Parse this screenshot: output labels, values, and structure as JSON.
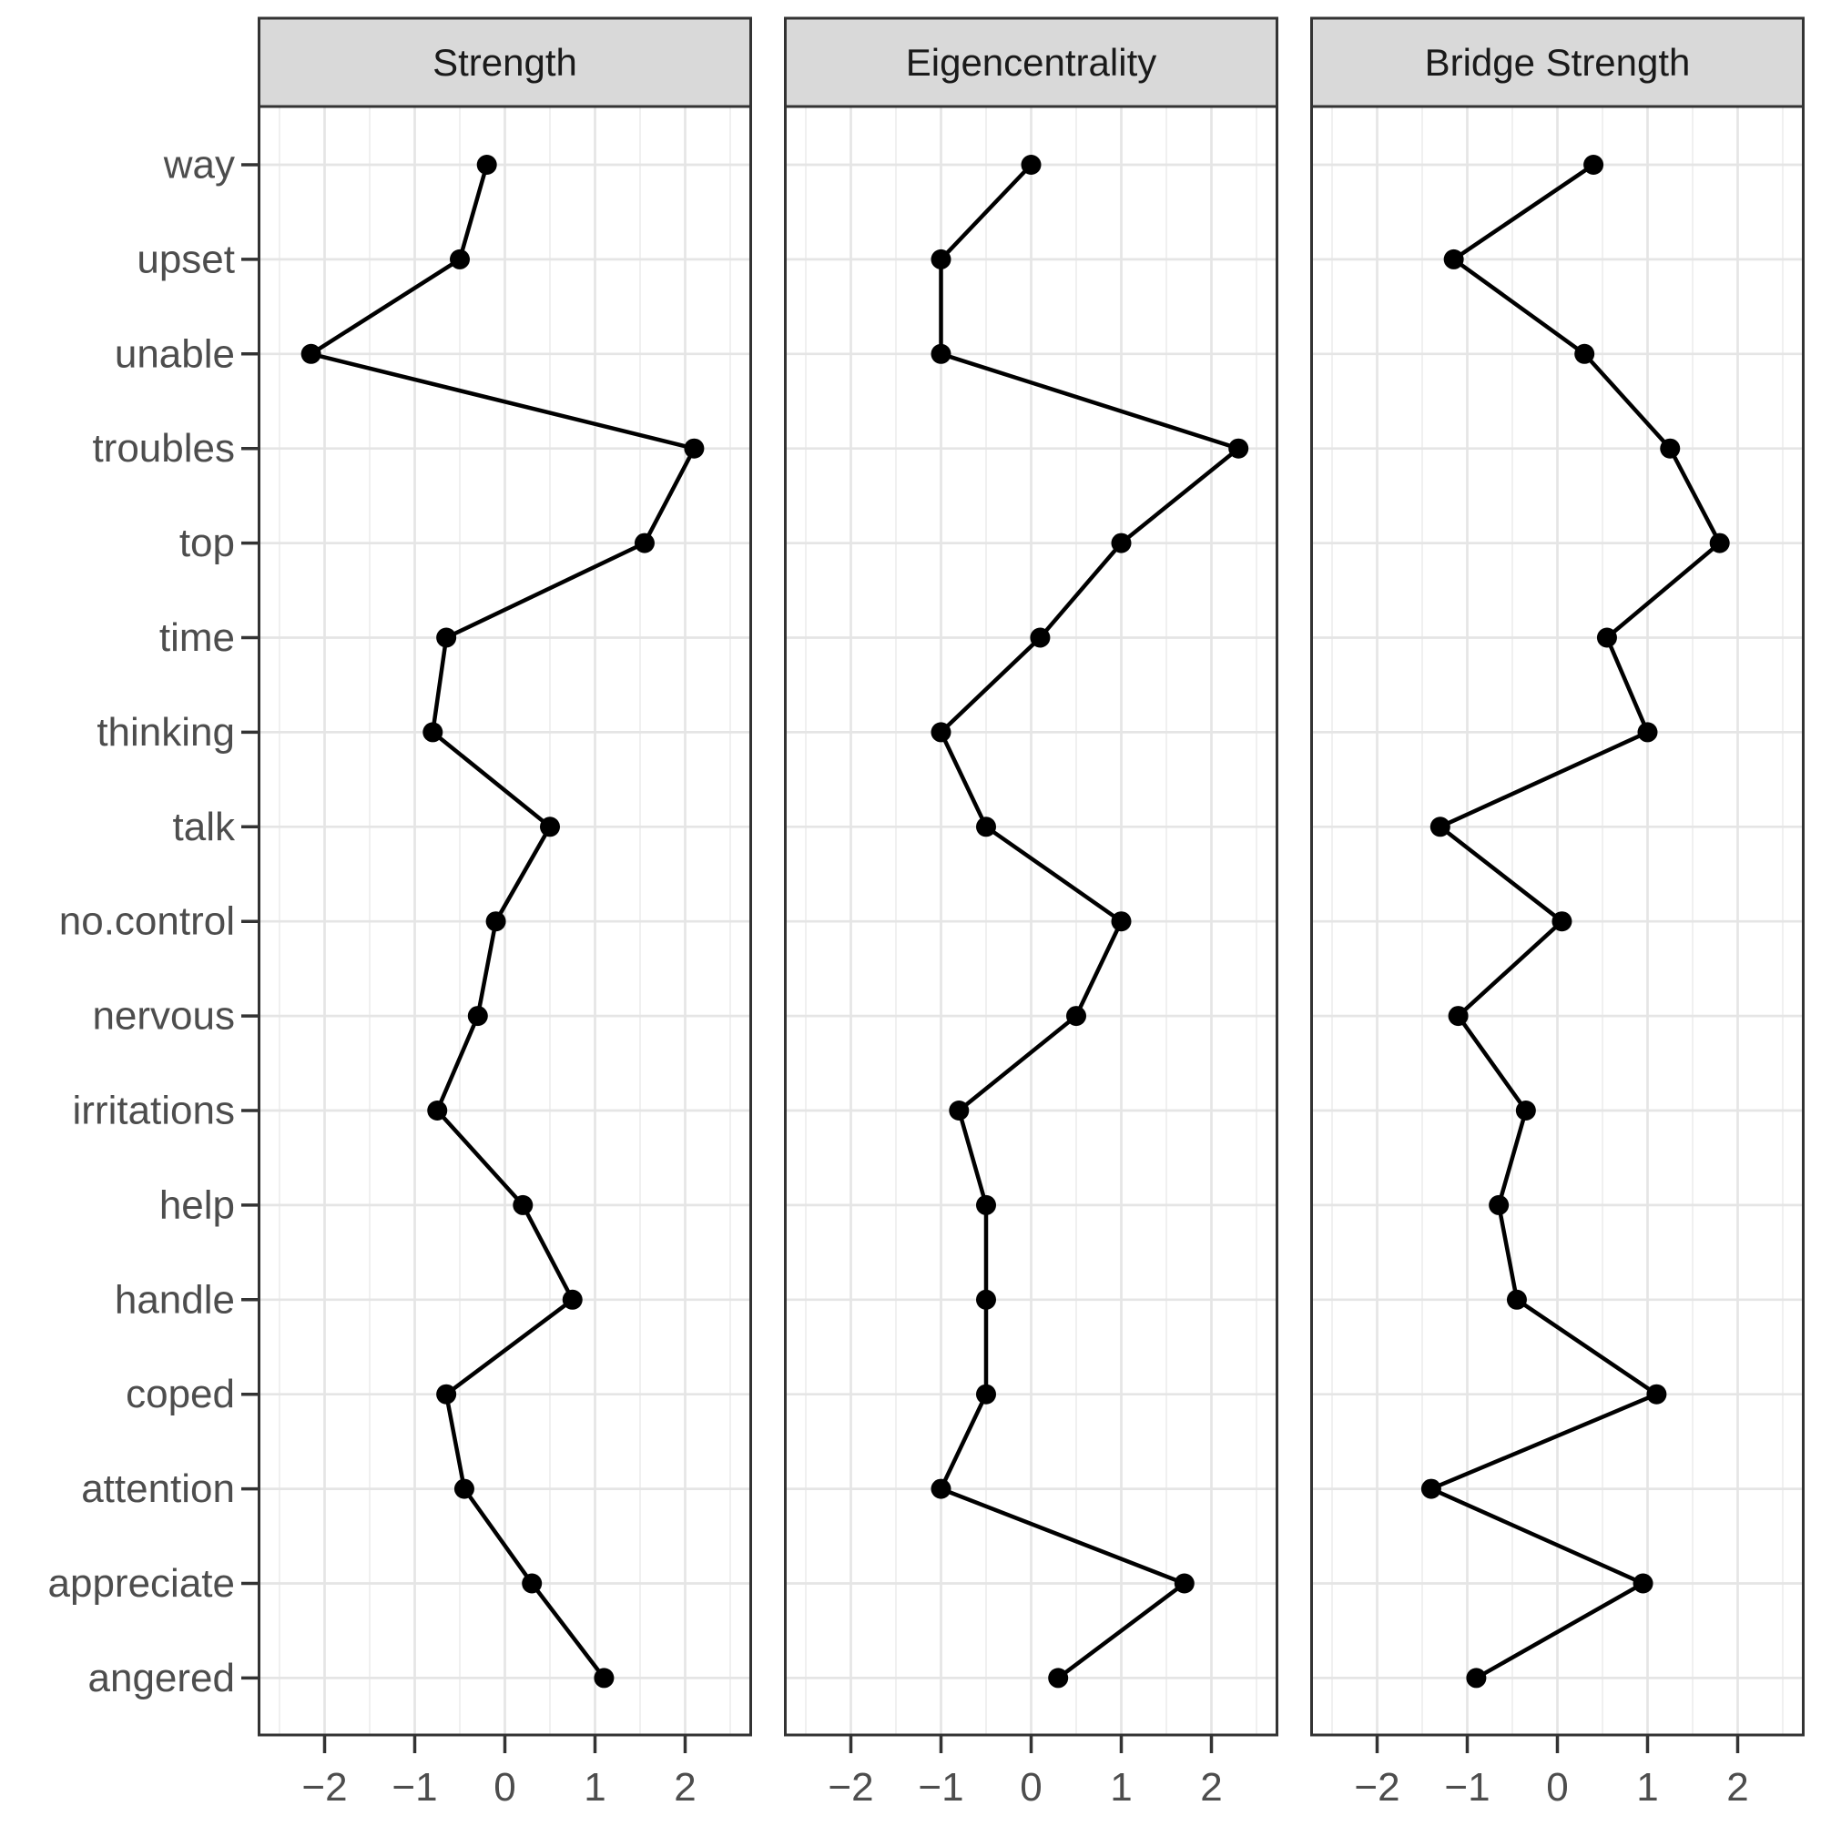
{
  "chart_data": {
    "type": "line",
    "title": "",
    "xlabel": "",
    "ylabel": "",
    "facet_layout": "three vertical panels sharing a categorical y-axis",
    "categories": [
      "way",
      "upset",
      "unable",
      "troubles",
      "top",
      "time",
      "thinking",
      "talk",
      "no.control",
      "nervous",
      "irritations",
      "help",
      "handle",
      "coped",
      "attention",
      "appreciate",
      "angered"
    ],
    "series": [
      {
        "name": "Strength",
        "values": [
          -0.2,
          -0.5,
          -2.15,
          2.1,
          1.55,
          -0.65,
          -0.8,
          0.5,
          -0.1,
          -0.3,
          -0.75,
          0.2,
          0.75,
          -0.65,
          -0.45,
          0.3,
          1.1
        ]
      },
      {
        "name": "Eigencentrality",
        "values": [
          0.0,
          -1.0,
          -1.0,
          2.3,
          1.0,
          0.1,
          -1.0,
          -0.5,
          1.0,
          0.5,
          -0.8,
          -0.5,
          -0.5,
          -0.5,
          -1.0,
          1.7,
          0.3
        ]
      },
      {
        "name": "Bridge Strength",
        "values": [
          0.4,
          -1.15,
          0.3,
          1.25,
          1.8,
          0.55,
          1.0,
          -1.3,
          0.05,
          -1.1,
          -0.35,
          -0.65,
          -0.45,
          1.1,
          -1.4,
          0.95,
          -0.9
        ]
      }
    ],
    "panel_titles": [
      "Strength",
      "Eigencentrality",
      "Bridge Strength"
    ],
    "x_ticks": [
      -2,
      -1,
      0,
      1,
      2
    ],
    "x_minor_ticks": [
      -2.5,
      -1.5,
      -0.5,
      0.5,
      1.5,
      2.5
    ],
    "xlim": [
      -2.74,
      2.74
    ],
    "legend": "none",
    "grid": "major vertical + minor vertical + one horizontal gridline per category",
    "marker": "filled black circle",
    "line_color": "#000000"
  },
  "style": {
    "panel_background": "#ffffff",
    "panel_border_color": "#333333",
    "header_fill": "#d9d9d9",
    "header_text_color": "#1a1a1a",
    "axis_text_color": "#4d4d4d",
    "tick_mark_color": "#333333",
    "grid_major_color": "#e5e5e5",
    "grid_minor_color": "#f0f0f0",
    "data_color": "#000000",
    "minus_sign": "−"
  }
}
